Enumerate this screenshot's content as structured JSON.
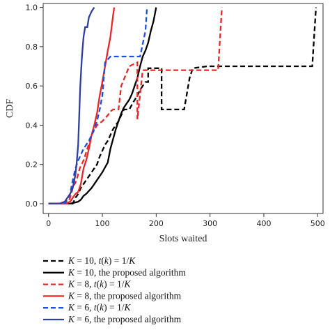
{
  "chart_data": {
    "type": "line",
    "xlabel": "Slots waited",
    "ylabel": "CDF",
    "xlim": [
      -10,
      510
    ],
    "ylim": [
      -0.05,
      1.02
    ],
    "xticks": [
      0,
      100,
      200,
      300,
      400,
      500
    ],
    "yticks": [
      0.0,
      0.2,
      0.4,
      0.6,
      0.8,
      1.0
    ],
    "xtick_labels": [
      "0",
      "100",
      "200",
      "300",
      "400",
      "500"
    ],
    "ytick_labels": [
      "0.0",
      "0.2",
      "0.4",
      "0.6",
      "0.8",
      "1.0"
    ],
    "grid": false,
    "legend_position": "bottom",
    "series": [
      {
        "name": "K = 10, t(k) = 1/K",
        "legend_parts": [
          "K",
          " = 10, ",
          "t",
          "(",
          "k",
          ") = 1/",
          "K"
        ],
        "color": "#000000",
        "dash": true,
        "points": [
          [
            0,
            0
          ],
          [
            45,
            0
          ],
          [
            50,
            0.03
          ],
          [
            55,
            0.05
          ],
          [
            60,
            0.08
          ],
          [
            65,
            0.1
          ],
          [
            70,
            0.12
          ],
          [
            75,
            0.14
          ],
          [
            80,
            0.16
          ],
          [
            85,
            0.18
          ],
          [
            90,
            0.2
          ],
          [
            95,
            0.24
          ],
          [
            100,
            0.27
          ],
          [
            105,
            0.3
          ],
          [
            110,
            0.32
          ],
          [
            115,
            0.35
          ],
          [
            120,
            0.38
          ],
          [
            125,
            0.4
          ],
          [
            130,
            0.42
          ],
          [
            135,
            0.45
          ],
          [
            140,
            0.48
          ],
          [
            150,
            0.48
          ],
          [
            158,
            0.52
          ],
          [
            165,
            0.55
          ],
          [
            170,
            0.58
          ],
          [
            175,
            0.6
          ],
          [
            180,
            0.62
          ],
          [
            185,
            0.62
          ],
          [
            185,
            0.69
          ],
          [
            200,
            0.69
          ],
          [
            210,
            0.69
          ],
          [
            210,
            0.48
          ],
          [
            245,
            0.48
          ],
          [
            252,
            0.48
          ],
          [
            262,
            0.64
          ],
          [
            268,
            0.69
          ],
          [
            295,
            0.7
          ],
          [
            490,
            0.7
          ],
          [
            497,
            1.0
          ]
        ]
      },
      {
        "name": "K = 10, the proposed algorithm",
        "legend_parts": [
          "K",
          " = 10, the proposed algorithm"
        ],
        "color": "#000000",
        "dash": false,
        "points": [
          [
            0,
            0
          ],
          [
            40,
            0
          ],
          [
            48,
            0.005
          ],
          [
            55,
            0.01
          ],
          [
            60,
            0.02
          ],
          [
            65,
            0.04
          ],
          [
            70,
            0.05
          ],
          [
            80,
            0.08
          ],
          [
            90,
            0.12
          ],
          [
            100,
            0.16
          ],
          [
            110,
            0.21
          ],
          [
            115,
            0.28
          ],
          [
            120,
            0.33
          ],
          [
            125,
            0.38
          ],
          [
            130,
            0.42
          ],
          [
            135,
            0.46
          ],
          [
            140,
            0.49
          ],
          [
            145,
            0.51
          ],
          [
            150,
            0.53
          ],
          [
            155,
            0.56
          ],
          [
            160,
            0.6
          ],
          [
            165,
            0.64
          ],
          [
            170,
            0.7
          ],
          [
            175,
            0.75
          ],
          [
            180,
            0.78
          ],
          [
            185,
            0.82
          ],
          [
            190,
            0.88
          ],
          [
            195,
            0.93
          ],
          [
            200,
            1.0
          ]
        ]
      },
      {
        "name": "K = 8, t(k) = 1/K",
        "legend_parts": [
          "K",
          " = 8, ",
          "t",
          "(",
          "k",
          ") = 1/",
          "K"
        ],
        "color": "#e62828",
        "dash": true,
        "points": [
          [
            0,
            0
          ],
          [
            35,
            0
          ],
          [
            40,
            0.03
          ],
          [
            45,
            0.08
          ],
          [
            52,
            0.12
          ],
          [
            58,
            0.18
          ],
          [
            65,
            0.22
          ],
          [
            72,
            0.28
          ],
          [
            80,
            0.35
          ],
          [
            90,
            0.4
          ],
          [
            100,
            0.42
          ],
          [
            110,
            0.45
          ],
          [
            115,
            0.47
          ],
          [
            120,
            0.48
          ],
          [
            125,
            0.48
          ],
          [
            130,
            0.48
          ],
          [
            135,
            0.6
          ],
          [
            150,
            0.7
          ],
          [
            165,
            0.72
          ],
          [
            165,
            0.43
          ],
          [
            175,
            0.68
          ],
          [
            210,
            0.68
          ],
          [
            245,
            0.68
          ],
          [
            315,
            0.68
          ],
          [
            322,
            1.0
          ]
        ]
      },
      {
        "name": "K = 8, the proposed algorithm",
        "legend_parts": [
          "K",
          " = 8, the proposed algorithm"
        ],
        "color": "#e62828",
        "dash": false,
        "points": [
          [
            0,
            0
          ],
          [
            30,
            0
          ],
          [
            40,
            0.01
          ],
          [
            45,
            0.03
          ],
          [
            50,
            0.05
          ],
          [
            55,
            0.06
          ],
          [
            60,
            0.1
          ],
          [
            65,
            0.18
          ],
          [
            70,
            0.22
          ],
          [
            75,
            0.28
          ],
          [
            80,
            0.35
          ],
          [
            85,
            0.4
          ],
          [
            90,
            0.46
          ],
          [
            95,
            0.55
          ],
          [
            100,
            0.62
          ],
          [
            105,
            0.7
          ],
          [
            110,
            0.78
          ],
          [
            115,
            0.85
          ],
          [
            118,
            0.92
          ],
          [
            122,
            1.0
          ]
        ]
      },
      {
        "name": "K = 6, t(k) = 1/K",
        "legend_parts": [
          "K",
          " = 6, ",
          "t",
          "(",
          "k",
          ") = 1/",
          "K"
        ],
        "color": "#1f4fd6",
        "dash": true,
        "points": [
          [
            0,
            0
          ],
          [
            30,
            0
          ],
          [
            35,
            0.02
          ],
          [
            40,
            0.05
          ],
          [
            45,
            0.12
          ],
          [
            50,
            0.18
          ],
          [
            55,
            0.22
          ],
          [
            60,
            0.25
          ],
          [
            65,
            0.28
          ],
          [
            70,
            0.3
          ],
          [
            75,
            0.32
          ],
          [
            80,
            0.35
          ],
          [
            85,
            0.38
          ],
          [
            90,
            0.42
          ],
          [
            95,
            0.48
          ],
          [
            100,
            0.55
          ],
          [
            105,
            0.72
          ],
          [
            115,
            0.75
          ],
          [
            130,
            0.75
          ],
          [
            170,
            0.75
          ],
          [
            180,
            0.88
          ],
          [
            183,
            1.0
          ]
        ]
      },
      {
        "name": "K = 6, the proposed algorithm",
        "legend_parts": [
          "K",
          " = 6, the proposed algorithm"
        ],
        "color": "#2e3f9e",
        "dash": false,
        "points": [
          [
            0,
            0
          ],
          [
            20,
            0
          ],
          [
            30,
            0.01
          ],
          [
            35,
            0.03
          ],
          [
            40,
            0.05
          ],
          [
            45,
            0.08
          ],
          [
            48,
            0.12
          ],
          [
            50,
            0.15
          ],
          [
            52,
            0.2
          ],
          [
            55,
            0.3
          ],
          [
            57,
            0.45
          ],
          [
            59,
            0.6
          ],
          [
            62,
            0.75
          ],
          [
            65,
            0.85
          ],
          [
            68,
            0.9
          ],
          [
            72,
            0.9
          ],
          [
            75,
            0.95
          ],
          [
            80,
            0.98
          ],
          [
            85,
            1.0
          ]
        ]
      }
    ]
  }
}
